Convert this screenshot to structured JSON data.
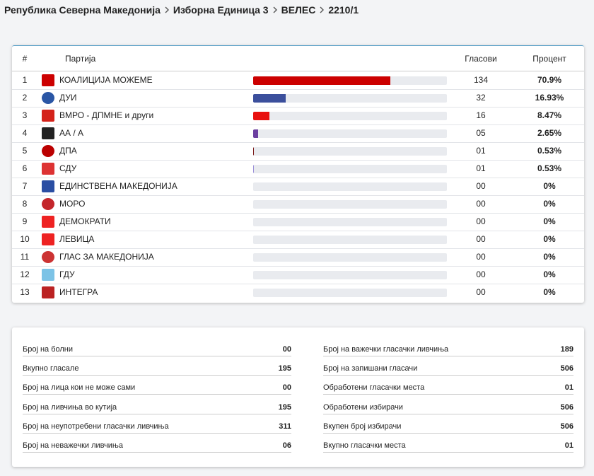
{
  "header": {
    "breadcrumb": [
      "Република Северна Македонија",
      "Изборна Единица 3",
      "ВЕЛЕС",
      "2210/1"
    ]
  },
  "table": {
    "columns": [
      "#",
      "Партија",
      "Гласови",
      "Процент"
    ],
    "rows": [
      {
        "number": 1,
        "party": "КОАЛИЦИЈА МОЖЕМЕ",
        "votes": 134,
        "percent": {
          "value": 70.9,
          "label": "70.9%"
        },
        "color": "#cc0000"
      },
      {
        "number": 2,
        "party": "ДУИ",
        "votes": 32,
        "percent": {
          "value": 16.93,
          "label": "16.93%"
        },
        "color": "#3b4f9c"
      },
      {
        "number": 3,
        "party": "ВМРО - ДПМНЕ и други",
        "votes": 16,
        "percent": {
          "value": 8.47,
          "label": "8.47%"
        },
        "color": "#e8110f"
      },
      {
        "number": 4,
        "party": "АА / А",
        "votes": "05",
        "percent": {
          "value": 2.65,
          "label": "2.65%"
        },
        "color": "#6b3fa0"
      },
      {
        "number": 5,
        "party": "ДПА",
        "votes": "01",
        "percent": {
          "value": 0.53,
          "label": "0.53%"
        },
        "color": "#7a1a1a"
      },
      {
        "number": 6,
        "party": "СДУ",
        "votes": "01",
        "percent": {
          "value": 0.53,
          "label": "0.53%"
        },
        "color": "#9a8fd8"
      },
      {
        "number": 7,
        "party": "ЕДИНСТВЕНА МАКЕДОНИЈА",
        "votes": "00",
        "percent": {
          "value": 0,
          "label": "0%"
        },
        "color": "#888888"
      },
      {
        "number": 8,
        "party": "МОРО",
        "votes": "00",
        "percent": {
          "value": 0,
          "label": "0%"
        },
        "color": "#888888"
      },
      {
        "number": 9,
        "party": "ДЕМОКРАТИ",
        "votes": "00",
        "percent": {
          "value": 0,
          "label": "0%"
        },
        "color": "#888888"
      },
      {
        "number": 10,
        "party": "ЛЕВИЦА",
        "votes": "00",
        "percent": {
          "value": 0,
          "label": "0%"
        },
        "color": "#888888"
      },
      {
        "number": 11,
        "party": "ГЛАС ЗА МАКЕДОНИЈА",
        "votes": "00",
        "percent": {
          "value": 0,
          "label": "0%"
        },
        "color": "#888888"
      },
      {
        "number": 12,
        "party": "ГДУ",
        "votes": "00",
        "percent": {
          "value": 0,
          "label": "0%"
        },
        "color": "#888888"
      },
      {
        "number": 13,
        "party": "ИНТЕГРА",
        "votes": "00",
        "percent": {
          "value": 0,
          "label": "0%"
        },
        "color": "#888888"
      }
    ]
  },
  "stats": {
    "left": [
      {
        "label": "Број на болни",
        "value": "00"
      },
      {
        "label": "Вкупно гласале",
        "value": 195
      },
      {
        "label": "Број на лица кои не може сами",
        "value": "00"
      },
      {
        "label": "Број на ливчиња во кутија",
        "value": 195
      },
      {
        "label": "Број на неупотребени гласачки ливчиња",
        "value": 311
      },
      {
        "label": "Број на неважечки ливчиња",
        "value": "06"
      }
    ],
    "right": [
      {
        "label": "Број на важечки гласачки ливчиња",
        "value": 189
      },
      {
        "label": "Број на запишани гласачи",
        "value": 506
      },
      {
        "label": "Обработени гласачки места",
        "value": "01"
      },
      {
        "label": "Обработени избирачи",
        "value": 506
      },
      {
        "label": "Вкупен број избирачи",
        "value": 506
      },
      {
        "label": "Вкупно гласачки места",
        "value": "01"
      }
    ]
  }
}
